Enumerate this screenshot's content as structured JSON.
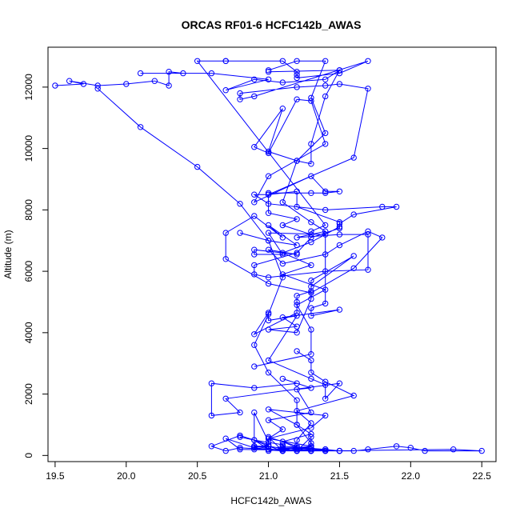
{
  "chart_data": {
    "type": "line",
    "title": "ORCAS RF01-6 HCFC142b_AWAS",
    "xlabel": "HCFC142b_AWAS",
    "ylabel": "Altitude (m)",
    "xlim": [
      19.45,
      22.6
    ],
    "ylim": [
      -200,
      13300
    ],
    "xticks": [
      19.5,
      20.0,
      20.5,
      21.0,
      21.5,
      22.0,
      22.5
    ],
    "xtick_labels": [
      "19.5",
      "20.0",
      "20.5",
      "21.0",
      "21.5",
      "22.0",
      "22.5"
    ],
    "yticks": [
      0,
      2000,
      4000,
      6000,
      8000,
      10000,
      12000
    ],
    "ytick_labels": [
      "0",
      "2000",
      "4000",
      "6000",
      "8000",
      "10000",
      "12000"
    ],
    "grid": false,
    "color": "#0000ff",
    "marker": "open-circle",
    "series": [
      {
        "x": [
          21.0,
          21.2,
          21.4,
          21.3,
          21.4,
          21.2,
          21.1,
          21.3,
          21.4,
          21.2,
          21.5,
          21.7,
          21.7,
          21.4,
          21.0,
          20.9,
          20.9,
          21.2,
          21.3,
          21.5,
          21.5,
          21.2,
          21.2,
          21.0,
          21.0,
          21.2,
          21.1,
          21.3,
          21.3,
          21.4,
          20.5,
          20.7,
          20.7,
          21.1,
          21.2,
          21.2,
          21.2,
          21.5,
          21.7,
          20.9,
          20.8,
          20.8,
          21.2,
          21.4,
          21.5,
          21.7,
          21.6,
          21.0,
          20.9,
          21.0,
          21.4,
          21.8,
          21.9,
          21.6,
          21.5,
          21.5,
          21.3,
          21.1,
          21.3,
          21.1,
          21.4,
          21.2,
          21.3,
          21.3,
          20.9
        ],
        "y": [
          12550,
          12850,
          12850,
          11650,
          10500,
          9600,
          8250,
          7600,
          7300,
          7100,
          7200,
          7200,
          6050,
          6000,
          5800,
          5900,
          6200,
          6600,
          7100,
          7400,
          7600,
          8100,
          8600,
          8500,
          7900,
          7700,
          7500,
          7200,
          7300,
          7500,
          12850,
          12850,
          12850,
          12850,
          12500,
          12400,
          12300,
          12450,
          12850,
          11700,
          11600,
          11800,
          12000,
          12050,
          12100,
          11950,
          9700,
          8500,
          8500,
          8200,
          8000,
          8100,
          8100,
          7850,
          7550,
          7450,
          6950,
          6600,
          6200,
          5900,
          5400,
          4900,
          4100,
          3300,
          2900
        ]
      },
      {
        "x": [
          20.8,
          21.0,
          21.2,
          21.0,
          21.1,
          20.9,
          20.7,
          20.7,
          21.0,
          21.3,
          21.6,
          21.8,
          21.7,
          21.5,
          21.4,
          21.1,
          21.0,
          21.2,
          20.9,
          20.9,
          21.1,
          21.0,
          21.4,
          21.4,
          21.3,
          21.3,
          21.5,
          21.1,
          21.2,
          21.0,
          21.2,
          21.3,
          21.3,
          21.6,
          21.3,
          21.3,
          21.2,
          21.2,
          21.2,
          20.9,
          21.0,
          21.0,
          21.2,
          21.0,
          21.3,
          21.4,
          21.4,
          21.5,
          20.7,
          20.8,
          20.6,
          20.6,
          20.9,
          21.2,
          21.1,
          21.3,
          21.2,
          21.3,
          21.0,
          21.1,
          21.0,
          21.3,
          21.4,
          21.0,
          21.2,
          21.3,
          21.1,
          21.2,
          21.2,
          21.3,
          21.2,
          21.6,
          21.4,
          21.3,
          21.3,
          21.2
        ],
        "y": [
          7250,
          7000,
          6850,
          7500,
          7100,
          7800,
          7250,
          6400,
          5600,
          5300,
          6100,
          7100,
          7300,
          6850,
          6550,
          6250,
          6700,
          6550,
          6700,
          6550,
          6550,
          7250,
          7200,
          4950,
          4800,
          4550,
          4750,
          4500,
          4200,
          4100,
          4000,
          5100,
          5700,
          6500,
          5500,
          5350,
          5200,
          5000,
          4650,
          3950,
          4650,
          4400,
          4550,
          3100,
          2500,
          2300,
          1850,
          2350,
          1850,
          1400,
          1300,
          2350,
          2200,
          2350,
          2500,
          2200,
          2150,
          1400,
          1150,
          850,
          550,
          900,
          1300,
          1500,
          1000,
          700,
          450,
          250,
          500,
          1050,
          1450,
          1950,
          2400,
          2700,
          3100,
          3400
        ]
      },
      {
        "x": [
          21.0,
          20.9,
          20.9,
          21.1,
          21.2,
          21.0,
          21.1,
          21.1,
          21.3,
          21.4,
          21.4,
          21.3,
          21.3,
          21.3,
          21.2,
          21.3,
          21.0,
          21.0,
          20.8,
          20.7,
          20.6,
          20.8,
          21.0,
          20.9,
          21.1,
          20.9,
          21.5,
          20.8,
          20.7,
          20.9,
          21.0,
          21.1,
          21.2,
          21.3,
          21.4,
          21.5,
          21.6,
          21.7,
          21.9,
          22.0,
          22.1,
          22.5,
          22.3,
          21.4,
          21.2,
          21.0,
          20.9,
          21.1,
          21.3,
          21.4,
          21.2,
          21.1,
          21.0,
          21.3,
          21.2,
          21.1,
          21.0,
          20.9,
          21.0,
          21.1,
          21.1,
          21.4,
          21.5,
          21.3
        ],
        "y": [
          450,
          1400,
          200,
          150,
          300,
          600,
          150,
          250,
          150,
          200,
          150,
          250,
          300,
          600,
          150,
          300,
          550,
          200,
          250,
          150,
          300,
          650,
          350,
          250,
          150,
          300,
          150,
          200,
          550,
          250,
          200,
          200,
          150,
          150,
          150,
          150,
          150,
          200,
          300,
          250,
          150,
          150,
          200,
          150,
          150,
          300,
          300,
          150,
          150,
          200,
          250,
          250,
          150,
          300,
          200,
          150,
          300,
          500,
          200,
          200,
          300,
          200,
          150,
          150
        ]
      },
      {
        "x": [
          19.5,
          19.7,
          19.6,
          19.8,
          20.0,
          20.2,
          20.3,
          20.3,
          20.4,
          20.1,
          20.6,
          21.0,
          20.7,
          20.9,
          21.1,
          21.4,
          21.5,
          21.0
        ],
        "y": [
          12050,
          12100,
          12200,
          12050,
          12100,
          12200,
          12050,
          12500,
          12450,
          12450,
          12450,
          12250,
          11900,
          12250,
          12150,
          12250,
          12550,
          12500
        ]
      },
      {
        "x": [
          19.8,
          20.1,
          20.5,
          20.8,
          21.0,
          21.1,
          21.0,
          20.9,
          21.0,
          21.2,
          21.2,
          21.3,
          21.3,
          21.2,
          21.1,
          21.1,
          20.9,
          20.8
        ],
        "y": [
          11950,
          10700,
          9400,
          8200,
          7000,
          5800,
          4600,
          3600,
          2700,
          1800,
          1000,
          400,
          200,
          150,
          200,
          350,
          500,
          600
        ]
      },
      {
        "x": [
          21.5,
          21.4,
          21.3,
          21.3,
          21.2,
          21.0,
          21.1,
          20.9,
          21.0,
          21.2,
          21.3,
          21.4,
          21.0,
          20.9,
          21.3,
          21.4,
          21.5,
          21.4,
          21.3,
          21.0
        ],
        "y": [
          12550,
          11700,
          10150,
          9500,
          9600,
          9900,
          11300,
          10050,
          9850,
          11600,
          11550,
          10150,
          9100,
          8250,
          9100,
          8600,
          8600,
          8550,
          8550,
          8550
        ]
      }
    ]
  }
}
